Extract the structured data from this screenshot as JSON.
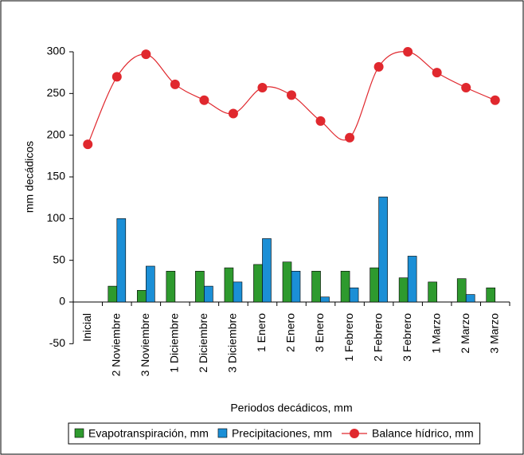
{
  "chart_data": {
    "type": "bar-line",
    "y_label": "mm decádicos",
    "x_label": "Periodos decádicos, mm",
    "categories": [
      "Inicial",
      "2 Noviembre",
      "3 Noviembre",
      "1 Diciembre",
      "2 Diciembre",
      "3 Diciembre",
      "1 Enero",
      "2 Enero",
      "3 Enero",
      "1 Febrero",
      "2 Febrero",
      "3 Febrero",
      "1 Marzo",
      "2 Marzo",
      "3 Marzo"
    ],
    "series": [
      {
        "name": "Evapotranspiración, mm",
        "type": "bar",
        "color": "#2e9a2e",
        "values": [
          null,
          19,
          14,
          37,
          37,
          41,
          45,
          48,
          37,
          37,
          41,
          29,
          24,
          28,
          17
        ]
      },
      {
        "name": "Precipitaciones, mm",
        "type": "bar",
        "color": "#1b8fd6",
        "values": [
          null,
          100,
          43,
          null,
          19,
          24,
          76,
          37,
          6,
          17,
          126,
          55,
          null,
          9,
          null
        ]
      },
      {
        "name": "Balance hídrico, mm",
        "type": "line",
        "color": "#e0282e",
        "values": [
          189,
          270,
          297,
          261,
          242,
          226,
          257,
          248,
          217,
          197,
          282,
          300,
          275,
          257,
          242
        ]
      }
    ],
    "ylim": [
      -50,
      300
    ],
    "yticks": [
      -50,
      0,
      50,
      100,
      150,
      200,
      250,
      300
    ],
    "legend": "bottom"
  }
}
